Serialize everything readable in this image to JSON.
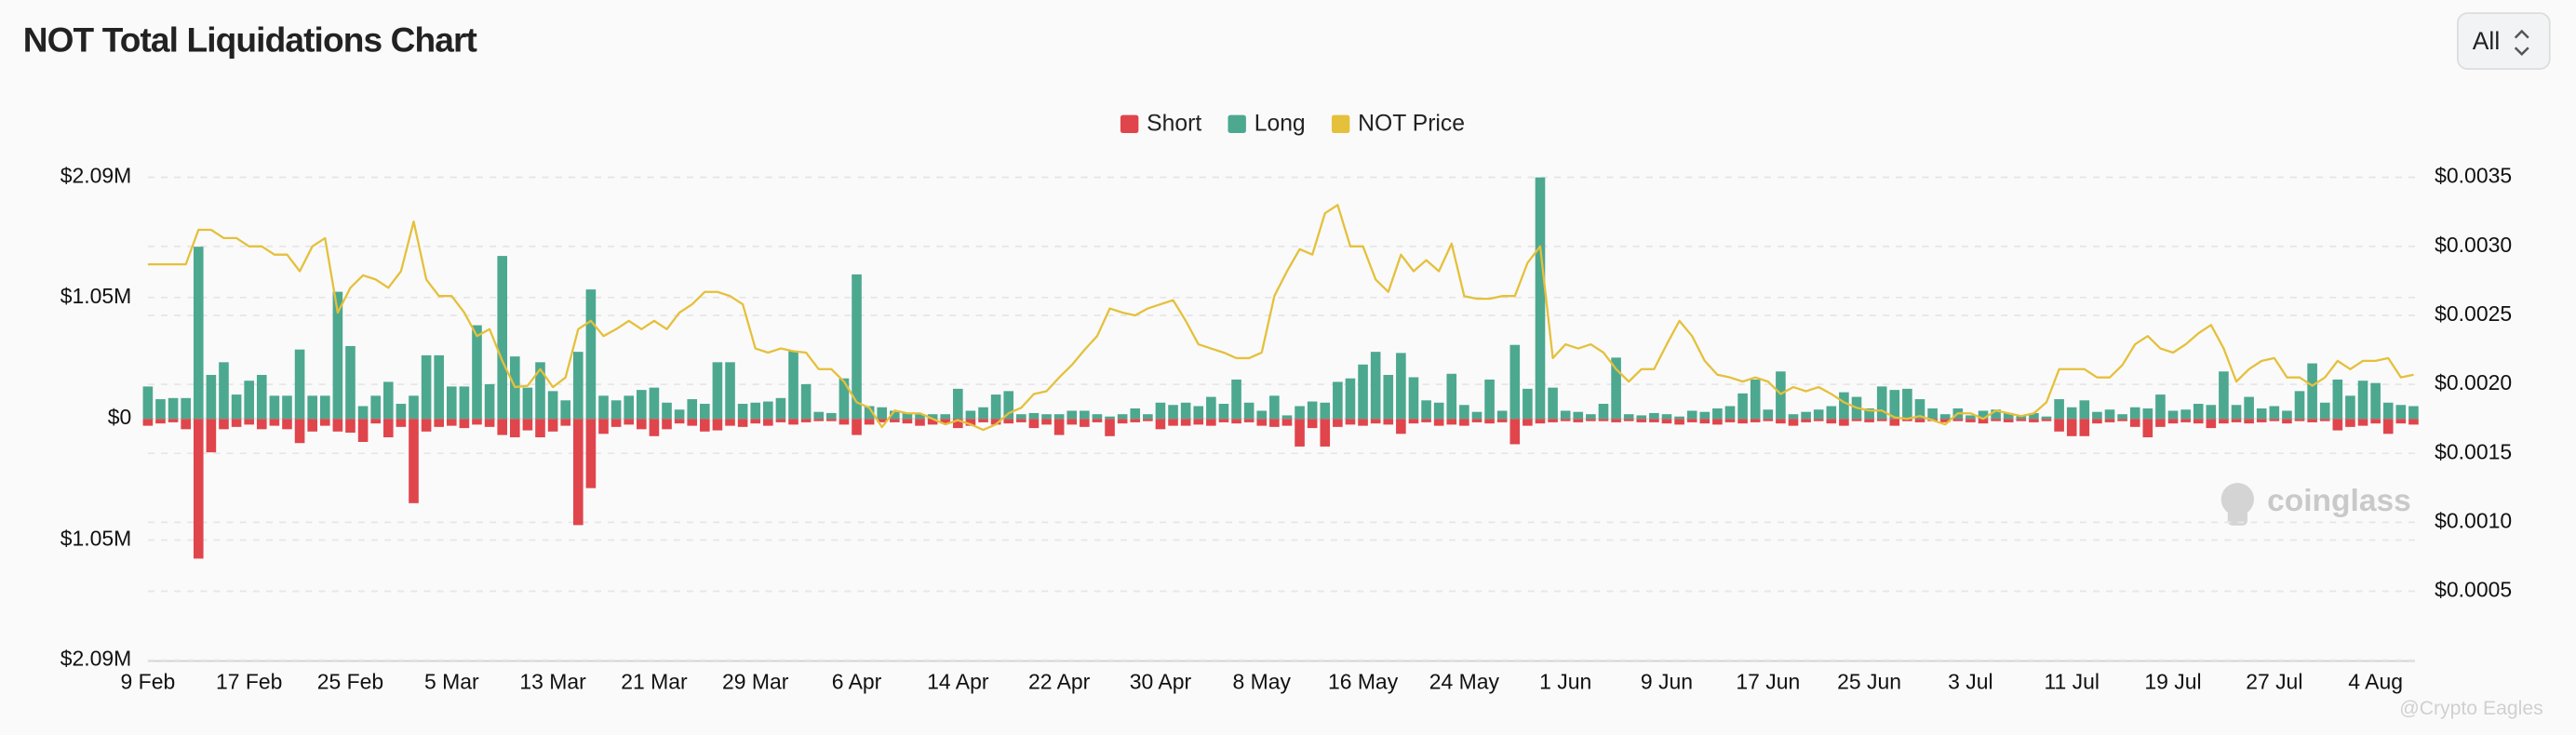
{
  "chart_data": {
    "type": "bar",
    "title": "NOT Total Liquidations Chart",
    "range_selector": "All",
    "watermark": "coinglass",
    "credit": "@Crypto Eagles",
    "categories": [
      "9 Feb",
      null,
      null,
      null,
      null,
      null,
      null,
      null,
      "17 Feb",
      null,
      null,
      null,
      null,
      null,
      null,
      null,
      "25 Feb",
      null,
      null,
      null,
      null,
      null,
      null,
      null,
      "5 Mar",
      null,
      null,
      null,
      null,
      null,
      null,
      null,
      "13 Mar",
      null,
      null,
      null,
      null,
      null,
      null,
      null,
      "21 Mar",
      null,
      null,
      null,
      null,
      null,
      null,
      null,
      "29 Mar",
      null,
      null,
      null,
      null,
      null,
      null,
      null,
      "6 Apr",
      null,
      null,
      null,
      null,
      null,
      null,
      null,
      "14 Apr",
      null,
      null,
      null,
      null,
      null,
      null,
      null,
      "22 Apr",
      null,
      null,
      null,
      null,
      null,
      null,
      null,
      "30 Apr",
      null,
      null,
      null,
      null,
      null,
      null,
      null,
      "8 May",
      null,
      null,
      null,
      null,
      null,
      null,
      null,
      "16 May",
      null,
      null,
      null,
      null,
      null,
      null,
      null,
      "24 May",
      null,
      null,
      null,
      null,
      null,
      null,
      null,
      "1 Jun",
      null,
      null,
      null,
      null,
      null,
      null,
      null,
      "9 Jun",
      null,
      null,
      null,
      null,
      null,
      null,
      null,
      "17 Jun",
      null,
      null,
      null,
      null,
      null,
      null,
      null,
      "25 Jun",
      null,
      null,
      null,
      null,
      null,
      null,
      null,
      "3 Jul",
      null,
      null,
      null,
      null,
      null,
      null,
      null,
      "11 Jul",
      null,
      null,
      null,
      null,
      null,
      null,
      null,
      "19 Jul",
      null,
      null,
      null,
      null,
      null,
      null,
      null,
      "27 Jul",
      null,
      null,
      null,
      null,
      null,
      null,
      null,
      "4 Aug",
      null,
      null,
      null
    ],
    "series": [
      {
        "name": "Short",
        "color": "#e0454c",
        "values": [
          -60000,
          -40000,
          -30000,
          -90000,
          -1210000,
          -290000,
          -90000,
          -70000,
          -50000,
          -90000,
          -60000,
          -90000,
          -210000,
          -110000,
          -60000,
          -110000,
          -120000,
          -200000,
          -40000,
          -160000,
          -70000,
          -730000,
          -110000,
          -70000,
          -60000,
          -80000,
          -50000,
          -70000,
          -140000,
          -160000,
          -100000,
          -160000,
          -110000,
          -60000,
          -920000,
          -600000,
          -130000,
          -70000,
          -50000,
          -90000,
          -150000,
          -90000,
          -40000,
          -60000,
          -110000,
          -100000,
          -60000,
          -70000,
          -40000,
          -60000,
          -30000,
          -50000,
          -30000,
          -20000,
          -20000,
          -50000,
          -140000,
          -50000,
          -30000,
          -30000,
          -40000,
          -60000,
          -50000,
          -40000,
          -80000,
          -60000,
          -30000,
          -50000,
          -40000,
          -30000,
          -80000,
          -50000,
          -140000,
          -50000,
          -70000,
          -30000,
          -150000,
          -40000,
          -30000,
          -20000,
          -90000,
          -60000,
          -60000,
          -50000,
          -60000,
          -30000,
          -40000,
          -30000,
          -60000,
          -70000,
          -60000,
          -240000,
          -80000,
          -240000,
          -70000,
          -50000,
          -60000,
          -40000,
          -50000,
          -130000,
          -40000,
          -30000,
          -60000,
          -50000,
          -60000,
          -30000,
          -40000,
          -30000,
          -220000,
          -60000,
          -40000,
          -30000,
          -20000,
          -30000,
          -20000,
          -20000,
          -30000,
          -20000,
          -30000,
          -30000,
          -40000,
          -50000,
          -30000,
          -40000,
          -50000,
          -30000,
          -40000,
          -30000,
          -20000,
          -40000,
          -60000,
          -30000,
          -20000,
          -40000,
          -60000,
          -20000,
          -30000,
          -20000,
          -60000,
          -20000,
          -30000,
          -20000,
          -30000,
          -20000,
          -30000,
          -40000,
          -20000,
          -30000,
          -20000,
          -30000,
          -20000,
          -110000,
          -150000,
          -150000,
          -40000,
          -30000,
          -20000,
          -70000,
          -160000,
          -70000,
          -40000,
          -30000,
          -40000,
          -80000,
          -40000,
          -30000,
          -40000,
          -30000,
          -20000,
          -40000,
          -20000,
          -30000,
          -20000,
          -100000,
          -70000,
          -60000,
          -40000,
          -130000,
          -40000,
          -50000
        ]
      },
      {
        "name": "Long",
        "color": "#4da890",
        "values": [
          280000,
          170000,
          180000,
          180000,
          1490000,
          380000,
          490000,
          210000,
          330000,
          380000,
          200000,
          200000,
          600000,
          200000,
          200000,
          1100000,
          630000,
          110000,
          200000,
          320000,
          130000,
          200000,
          550000,
          550000,
          280000,
          280000,
          810000,
          300000,
          1410000,
          540000,
          270000,
          490000,
          240000,
          160000,
          580000,
          1120000,
          200000,
          160000,
          200000,
          250000,
          270000,
          140000,
          80000,
          170000,
          130000,
          490000,
          490000,
          130000,
          140000,
          150000,
          180000,
          590000,
          300000,
          60000,
          50000,
          350000,
          1250000,
          110000,
          100000,
          70000,
          50000,
          40000,
          40000,
          40000,
          260000,
          70000,
          100000,
          210000,
          240000,
          40000,
          50000,
          40000,
          40000,
          70000,
          70000,
          40000,
          20000,
          40000,
          90000,
          40000,
          140000,
          120000,
          140000,
          110000,
          190000,
          130000,
          340000,
          140000,
          70000,
          200000,
          30000,
          110000,
          150000,
          140000,
          320000,
          350000,
          470000,
          580000,
          380000,
          570000,
          360000,
          160000,
          140000,
          390000,
          120000,
          60000,
          340000,
          70000,
          640000,
          260000,
          2090000,
          270000,
          70000,
          60000,
          40000,
          130000,
          530000,
          40000,
          30000,
          50000,
          40000,
          20000,
          70000,
          60000,
          90000,
          110000,
          220000,
          340000,
          80000,
          410000,
          40000,
          60000,
          80000,
          110000,
          230000,
          190000,
          90000,
          280000,
          250000,
          260000,
          170000,
          90000,
          40000,
          90000,
          30000,
          70000,
          80000,
          50000,
          30000,
          50000,
          20000,
          170000,
          100000,
          160000,
          60000,
          80000,
          40000,
          100000,
          90000,
          210000,
          70000,
          80000,
          130000,
          120000,
          410000,
          120000,
          190000,
          90000,
          110000,
          70000,
          240000,
          480000,
          140000,
          340000,
          200000,
          330000,
          310000,
          140000,
          120000,
          110000
        ]
      },
      {
        "name": "NOT Price",
        "color": "#e5c03b",
        "axis": "y2",
        "type": "line",
        "values": [
          0.00287,
          0.00287,
          0.00287,
          0.00287,
          0.00312,
          0.00312,
          0.00306,
          0.00306,
          0.003,
          0.003,
          0.00294,
          0.00294,
          0.00282,
          0.003,
          0.00306,
          0.00252,
          0.0027,
          0.00279,
          0.00276,
          0.0027,
          0.00282,
          0.00318,
          0.00276,
          0.00264,
          0.00264,
          0.00252,
          0.00235,
          0.0024,
          0.00217,
          0.00198,
          0.00199,
          0.00211,
          0.00198,
          0.00205,
          0.0024,
          0.00246,
          0.00235,
          0.0024,
          0.00246,
          0.0024,
          0.00246,
          0.0024,
          0.00252,
          0.00258,
          0.00267,
          0.00267,
          0.00264,
          0.00258,
          0.00226,
          0.00223,
          0.00226,
          0.00224,
          0.00223,
          0.00211,
          0.00211,
          0.00202,
          0.00187,
          0.00183,
          0.00169,
          0.00181,
          0.00179,
          0.00179,
          0.00175,
          0.00171,
          0.00174,
          0.00171,
          0.00167,
          0.00171,
          0.00179,
          0.00183,
          0.00193,
          0.00195,
          0.00205,
          0.00214,
          0.00225,
          0.00235,
          0.00255,
          0.00252,
          0.0025,
          0.00255,
          0.00258,
          0.00261,
          0.00246,
          0.00229,
          0.00226,
          0.00223,
          0.00219,
          0.00219,
          0.00223,
          0.00264,
          0.00282,
          0.00298,
          0.00294,
          0.00324,
          0.0033,
          0.003,
          0.003,
          0.00276,
          0.00267,
          0.00294,
          0.00282,
          0.0029,
          0.00282,
          0.00302,
          0.00264,
          0.00262,
          0.00262,
          0.00264,
          0.00264,
          0.00288,
          0.003,
          0.00219,
          0.00229,
          0.00226,
          0.00229,
          0.00223,
          0.00211,
          0.00202,
          0.00211,
          0.00211,
          0.00229,
          0.00246,
          0.00235,
          0.00217,
          0.00207,
          0.00205,
          0.00202,
          0.00205,
          0.00202,
          0.00193,
          0.00198,
          0.00195,
          0.00198,
          0.00193,
          0.00187,
          0.00183,
          0.00181,
          0.00181,
          0.00176,
          0.00175,
          0.00177,
          0.00174,
          0.00171,
          0.00179,
          0.00179,
          0.00175,
          0.00181,
          0.00179,
          0.00177,
          0.00179,
          0.00187,
          0.00211,
          0.00211,
          0.00211,
          0.00205,
          0.00205,
          0.00214,
          0.00229,
          0.00235,
          0.00226,
          0.00223,
          0.00229,
          0.00237,
          0.00243,
          0.00226,
          0.00202,
          0.00211,
          0.00217,
          0.00219,
          0.00205,
          0.00205,
          0.00199,
          0.00205,
          0.00217,
          0.00211,
          0.00217,
          0.00217,
          0.00219,
          0.00205,
          0.00207
        ]
      }
    ],
    "ylim": [
      -2090000,
      2090000
    ],
    "yticks": [
      {
        "value": 2090000,
        "label": "$2.09M"
      },
      {
        "value": 1050000,
        "label": "$1.05M"
      },
      {
        "value": 0,
        "label": "$0"
      },
      {
        "value": -1050000,
        "label": "$1.05M"
      },
      {
        "value": -2090000,
        "label": "$2.09M"
      }
    ],
    "y2lim": [
      0,
      0.0035
    ],
    "y2ticks": [
      {
        "value": 0.0035,
        "label": "$0.0035"
      },
      {
        "value": 0.003,
        "label": "$0.0030"
      },
      {
        "value": 0.0025,
        "label": "$0.0025"
      },
      {
        "value": 0.002,
        "label": "$0.0020"
      },
      {
        "value": 0.0015,
        "label": "$0.0015"
      },
      {
        "value": 0.001,
        "label": "$0.0010"
      },
      {
        "value": 0.0005,
        "label": "$0.0005"
      }
    ],
    "grid": true,
    "legend": "top"
  }
}
